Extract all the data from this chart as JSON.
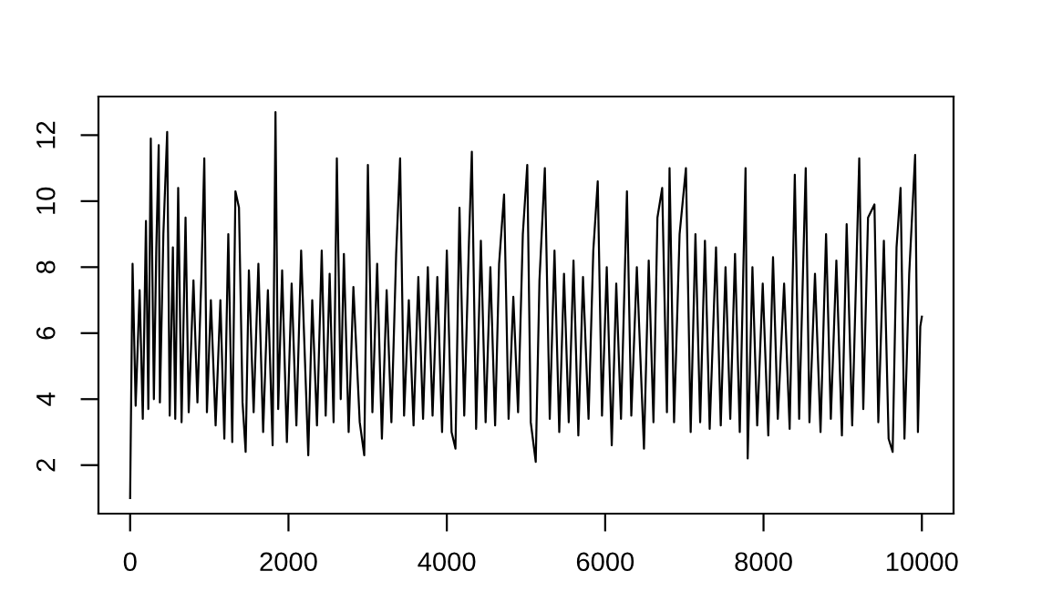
{
  "chart_data": {
    "type": "line",
    "x": [
      0,
      31,
      70,
      120,
      160,
      200,
      230,
      261,
      300,
      330,
      361,
      376,
      420,
      468,
      500,
      540,
      570,
      607,
      650,
      700,
      740,
      800,
      850,
      900,
      937,
      970,
      1020,
      1080,
      1140,
      1190,
      1240,
      1290,
      1330,
      1375,
      1420,
      1459,
      1500,
      1560,
      1620,
      1680,
      1740,
      1800,
      1836,
      1870,
      1920,
      1980,
      2040,
      2100,
      2160,
      2250,
      2300,
      2360,
      2420,
      2470,
      2520,
      2570,
      2611,
      2660,
      2700,
      2760,
      2820,
      2900,
      2957,
      3003,
      3060,
      3120,
      3180,
      3240,
      3300,
      3360,
      3410,
      3460,
      3520,
      3580,
      3640,
      3700,
      3760,
      3820,
      3880,
      3940,
      4000,
      4060,
      4109,
      4160,
      4220,
      4280,
      4316,
      4370,
      4430,
      4490,
      4550,
      4610,
      4660,
      4723,
      4780,
      4840,
      4900,
      4960,
      5016,
      5060,
      5123,
      5170,
      5238,
      5300,
      5360,
      5420,
      5480,
      5540,
      5600,
      5661,
      5720,
      5790,
      5850,
      5906,
      5960,
      6020,
      6083,
      6140,
      6200,
      6275,
      6330,
      6400,
      6490,
      6550,
      6610,
      6660,
      6720,
      6780,
      6813,
      6870,
      6940,
      7020,
      7080,
      7140,
      7200,
      7260,
      7320,
      7400,
      7460,
      7520,
      7580,
      7640,
      7700,
      7773,
      7800,
      7860,
      7920,
      7990,
      8060,
      8120,
      8180,
      8260,
      8330,
      8395,
      8450,
      8533,
      8580,
      8650,
      8720,
      8790,
      8850,
      8920,
      8990,
      9050,
      9120,
      9209,
      9260,
      9320,
      9401,
      9450,
      9520,
      9580,
      9631,
      9680,
      9731,
      9780,
      9840,
      9915,
      9950,
      9980,
      10000
    ],
    "values": [
      1.0,
      8.1,
      3.8,
      7.3,
      3.4,
      9.4,
      3.7,
      11.9,
      4.0,
      8.5,
      11.7,
      3.9,
      9.0,
      12.1,
      3.5,
      8.6,
      3.4,
      10.4,
      3.3,
      9.5,
      3.6,
      7.6,
      3.9,
      7.7,
      11.3,
      3.6,
      7.0,
      3.2,
      7.0,
      2.8,
      9.0,
      2.7,
      10.3,
      9.8,
      3.9,
      2.4,
      7.9,
      3.6,
      8.1,
      3.0,
      7.3,
      2.6,
      12.7,
      3.7,
      7.9,
      2.7,
      7.5,
      3.2,
      8.5,
      2.3,
      7.0,
      3.2,
      8.5,
      3.5,
      7.8,
      3.3,
      11.3,
      4.0,
      8.4,
      3.0,
      7.4,
      3.3,
      2.3,
      11.1,
      3.6,
      8.1,
      2.8,
      7.3,
      3.3,
      8.4,
      11.3,
      3.5,
      7.0,
      3.2,
      7.7,
      3.4,
      8.0,
      3.5,
      7.7,
      3.0,
      8.5,
      3.0,
      2.5,
      9.8,
      3.5,
      8.8,
      11.5,
      3.1,
      8.8,
      3.3,
      8.0,
      3.2,
      8.1,
      10.2,
      3.4,
      7.1,
      3.6,
      9.0,
      11.1,
      3.3,
      2.1,
      7.6,
      11.0,
      3.4,
      8.5,
      3.0,
      7.8,
      3.3,
      8.2,
      2.9,
      7.7,
      3.4,
      8.5,
      10.6,
      3.5,
      8.0,
      2.6,
      7.5,
      3.4,
      10.3,
      3.5,
      8.0,
      2.5,
      8.2,
      3.3,
      9.5,
      10.4,
      3.6,
      11.0,
      3.3,
      9.0,
      11.0,
      3.0,
      9.0,
      3.3,
      8.8,
      3.1,
      8.6,
      3.2,
      8.0,
      3.4,
      8.4,
      3.0,
      11.0,
      2.2,
      8.0,
      3.2,
      7.5,
      2.9,
      8.3,
      3.4,
      7.5,
      3.1,
      10.8,
      3.4,
      11.0,
      3.3,
      7.8,
      3.0,
      9.0,
      3.4,
      8.2,
      2.9,
      9.3,
      3.2,
      11.3,
      3.7,
      9.5,
      9.9,
      3.3,
      8.8,
      2.8,
      2.4,
      8.6,
      10.4,
      2.8,
      7.8,
      11.4,
      3.0,
      6.2,
      6.5
    ],
    "color": "#000000",
    "xlim": [
      -400,
      10400
    ],
    "ylim": [
      0.53,
      13.17
    ],
    "xticks": [
      0,
      2000,
      4000,
      6000,
      8000,
      10000
    ],
    "yticks": [
      2,
      4,
      6,
      8,
      10,
      12
    ],
    "grid": false,
    "legend": false,
    "marker": "none",
    "line_style": "solid"
  }
}
